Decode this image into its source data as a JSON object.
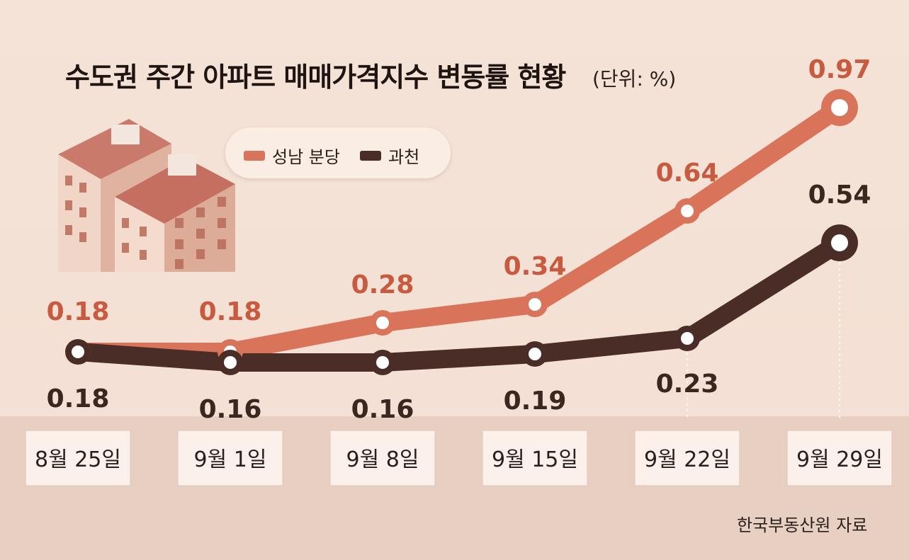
{
  "title": "수도권 주간 아파트 매매가격지수 변동률 현황",
  "unit": "(단위: %)",
  "source": "한국부동산원 자료",
  "colors": {
    "seongnam": "#d9735a",
    "gwacheon": "#4a2d26",
    "label_seongnam": "#c85a40",
    "label_gwacheon": "#3b2620",
    "background": "#f4e1d5",
    "band": "#e7cfc2"
  },
  "legend": [
    {
      "name": "성남 분당",
      "color": "#d9735a"
    },
    {
      "name": "과천",
      "color": "#4a2d26"
    }
  ],
  "illustration": "apartment-building-icon",
  "chart_data": {
    "type": "line",
    "title": "수도권 주간 아파트 매매가격지수 변동률 현황",
    "unit": "%",
    "categories": [
      "8월 25일",
      "9월 1일",
      "9월 8일",
      "9월 15일",
      "9월 22일",
      "9월 29일"
    ],
    "series": [
      {
        "name": "성남 분당",
        "values": [
          0.18,
          0.18,
          0.28,
          0.34,
          0.64,
          0.97
        ],
        "labels": [
          "0.18",
          "0.18",
          "0.28",
          "0.34",
          "0.64",
          "0.97"
        ]
      },
      {
        "name": "과천",
        "values": [
          0.18,
          0.16,
          0.16,
          0.19,
          0.23,
          0.54
        ],
        "labels": [
          "0.18",
          "0.16",
          "0.16",
          "0.19",
          "0.23",
          "0.54"
        ]
      }
    ],
    "ylim": [
      0.1,
      1.0
    ],
    "grid": false,
    "legend_position": "top-left"
  }
}
